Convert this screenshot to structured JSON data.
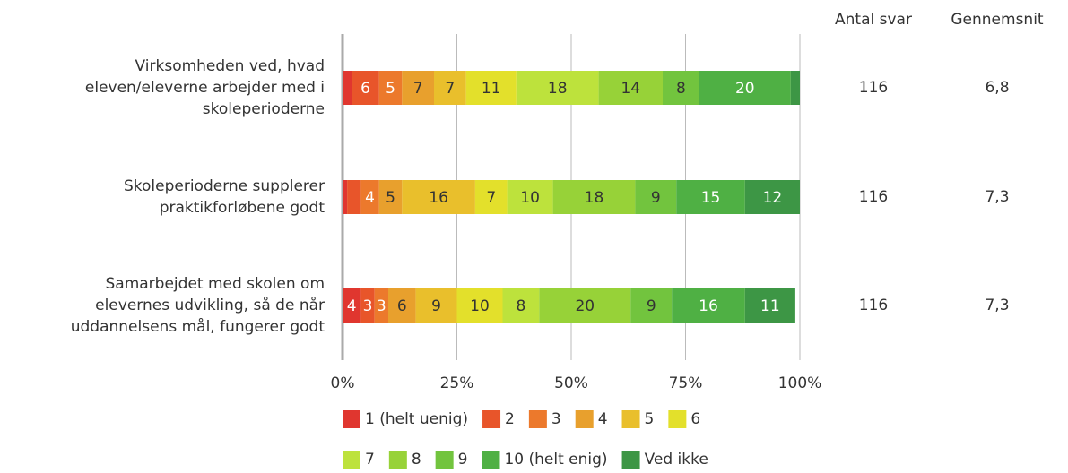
{
  "chart_data": {
    "type": "stacked-barh",
    "categories": [
      "Virksomheden ved, hvad eleven/eleverne arbejder med i skoleperioderne",
      "Skoleperioderne supplerer praktikforløbene godt",
      "Samarbejdet med skolen om elevernes udvikling, så de når uddannelsens mål, fungerer godt"
    ],
    "series": [
      {
        "name": "1 (helt uenig)",
        "color": "#e0362f",
        "label_color": "#ffffff",
        "values": [
          2,
          1,
          4
        ],
        "value_labels": [
          null,
          null,
          "4"
        ]
      },
      {
        "name": "2",
        "color": "#e8552a",
        "label_color": "#ffffff",
        "values": [
          6,
          3,
          3
        ],
        "value_labels": [
          "6",
          null,
          "3"
        ]
      },
      {
        "name": "3",
        "color": "#ec792c",
        "label_color": "#ffffff",
        "values": [
          5,
          4,
          3
        ],
        "value_labels": [
          "5",
          "4",
          "3"
        ]
      },
      {
        "name": "4",
        "color": "#e8a02d",
        "label_color": "#333333",
        "values": [
          7,
          5,
          6
        ],
        "value_labels": [
          "7",
          "5",
          "6"
        ]
      },
      {
        "name": "5",
        "color": "#e9bf2c",
        "label_color": "#333333",
        "values": [
          7,
          16,
          9
        ],
        "value_labels": [
          "7",
          "16",
          "9"
        ]
      },
      {
        "name": "6",
        "color": "#e3e02b",
        "label_color": "#333333",
        "values": [
          11,
          7,
          10
        ],
        "value_labels": [
          "11",
          "7",
          "10"
        ]
      },
      {
        "name": "7",
        "color": "#bde23c",
        "label_color": "#333333",
        "values": [
          18,
          10,
          8
        ],
        "value_labels": [
          "18",
          "10",
          "8"
        ]
      },
      {
        "name": "8",
        "color": "#97d238",
        "label_color": "#333333",
        "values": [
          14,
          18,
          20
        ],
        "value_labels": [
          "14",
          "18",
          "20"
        ]
      },
      {
        "name": "9",
        "color": "#72c43e",
        "label_color": "#333333",
        "values": [
          8,
          9,
          9
        ],
        "value_labels": [
          "8",
          "9",
          "9"
        ]
      },
      {
        "name": "10 (helt enig)",
        "color": "#4fb044",
        "label_color": "#ffffff",
        "values": [
          20,
          15,
          16
        ],
        "value_labels": [
          "20",
          "15",
          "16"
        ]
      },
      {
        "name": "Ved ikke",
        "color": "#3d9645",
        "label_color": "#ffffff",
        "values": [
          2,
          12,
          11
        ],
        "value_labels": [
          null,
          "12",
          "11"
        ]
      }
    ],
    "xlim": [
      0,
      100
    ],
    "xticks": [
      {
        "value": 0,
        "label": "0%"
      },
      {
        "value": 25,
        "label": "25%"
      },
      {
        "value": 50,
        "label": "50%"
      },
      {
        "value": 75,
        "label": "75%"
      },
      {
        "value": 100,
        "label": "100%"
      }
    ],
    "grid": true,
    "side_columns": [
      {
        "header": "Antal svar",
        "values": [
          116,
          116,
          116
        ]
      },
      {
        "header": "Gennemsnit",
        "values": [
          "6,8",
          "7,3",
          "7,3"
        ]
      }
    ]
  }
}
